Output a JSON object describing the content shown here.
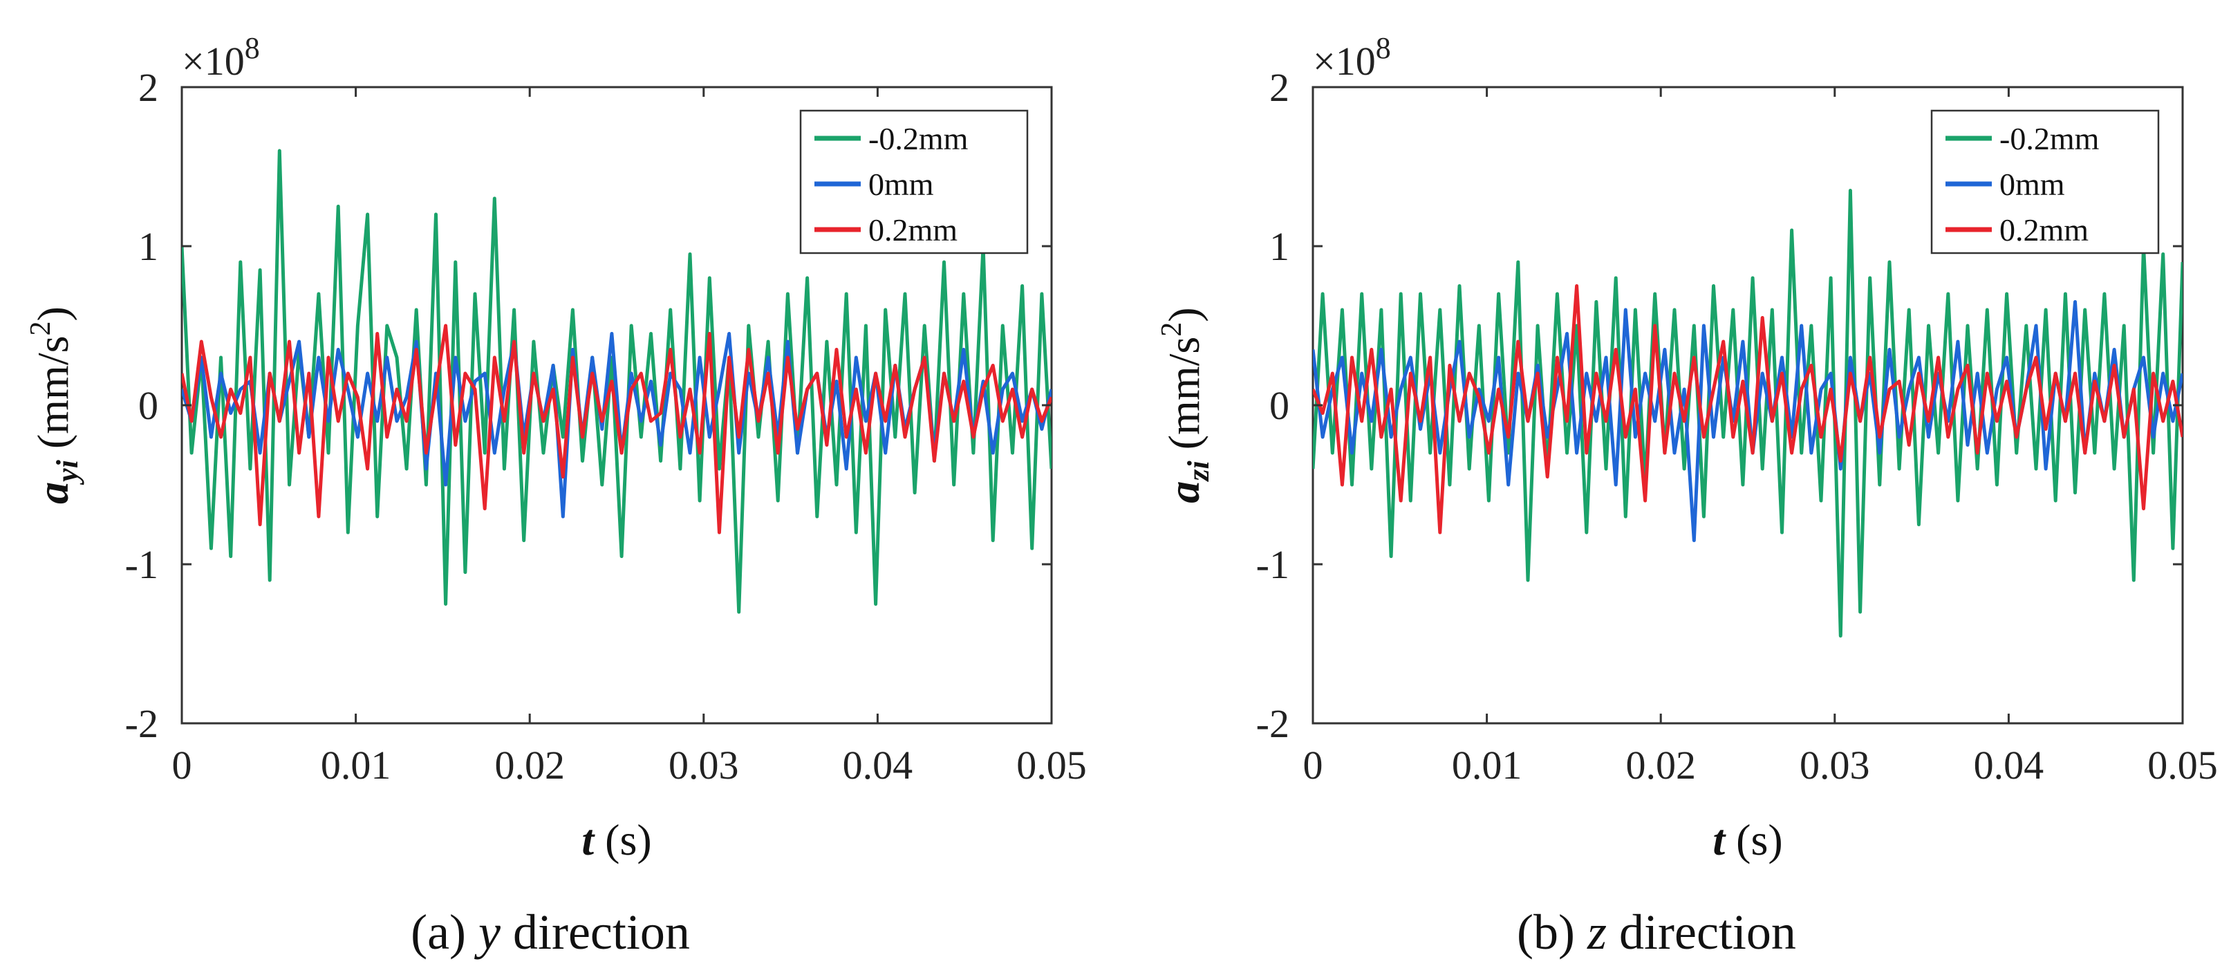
{
  "colors": {
    "series_minus_0_2": "#1aa36a",
    "series_0": "#1f66d6",
    "series_plus_0_2": "#e8242c"
  },
  "chart_data": [
    {
      "type": "line",
      "caption_letter": "(a)",
      "caption_var": "y",
      "caption_rest": " direction",
      "ylabel_main": "a",
      "ylabel_sub": "yi",
      "ylabel_unit_prefix": " (mm/s",
      "ylabel_unit_exp": "2",
      "ylabel_unit_suffix": ")",
      "xlabel_var": "t",
      "xlabel_unit": " (s)",
      "y_scale_base": "×10",
      "y_scale_exp": "8",
      "xlim": [
        0,
        0.05
      ],
      "ylim": [
        -2,
        2
      ],
      "x_ticks": [
        0,
        0.01,
        0.02,
        0.03,
        0.04,
        0.05
      ],
      "x_tick_labels": [
        "0",
        "0.01",
        "0.02",
        "0.03",
        "0.04",
        "0.05"
      ],
      "y_ticks": [
        -2,
        -1,
        0,
        1,
        2
      ],
      "y_tick_labels": [
        "-2",
        "-1",
        "0",
        "1",
        "2"
      ],
      "legend": [
        "-0.2mm",
        "0mm",
        "0.2mm"
      ],
      "legend_position": "top-right",
      "series": [
        {
          "name": "-0.2mm",
          "x_start": 0,
          "x_end": 0.05,
          "values": [
            1.0,
            -0.3,
            0.3,
            -0.9,
            0.3,
            -0.95,
            0.9,
            -0.4,
            0.85,
            -1.1,
            1.6,
            -0.5,
            0.35,
            -0.2,
            0.7,
            -0.3,
            1.25,
            -0.8,
            0.5,
            1.2,
            -0.7,
            0.5,
            0.3,
            -0.4,
            0.6,
            -0.5,
            1.2,
            -1.25,
            0.9,
            -1.05,
            0.7,
            -0.3,
            1.3,
            -0.4,
            0.6,
            -0.85,
            0.4,
            -0.3,
            0.25,
            -0.2,
            0.6,
            -0.35,
            0.3,
            -0.5,
            0.3,
            -0.95,
            0.5,
            -0.2,
            0.45,
            -0.35,
            0.6,
            -0.4,
            0.95,
            -0.6,
            0.8,
            -0.4,
            0.3,
            -1.3,
            0.5,
            -0.2,
            0.4,
            -0.6,
            0.7,
            -0.3,
            0.8,
            -0.7,
            0.4,
            -0.5,
            0.7,
            -0.8,
            0.5,
            -1.25,
            0.6,
            -0.2,
            0.7,
            -0.55,
            0.5,
            -0.35,
            0.9,
            -0.5,
            0.7,
            -0.3,
            1.0,
            -0.85,
            0.5,
            -0.3,
            0.75,
            -0.9,
            0.7,
            -0.4
          ]
        },
        {
          "name": "0mm",
          "x_start": 0,
          "x_end": 0.05,
          "values": [
            0.1,
            -0.1,
            0.3,
            -0.2,
            0.2,
            -0.05,
            0.1,
            0.15,
            -0.3,
            0.2,
            -0.1,
            0.15,
            0.4,
            -0.2,
            0.3,
            -0.1,
            0.35,
            0.1,
            -0.2,
            0.2,
            -0.1,
            0.3,
            -0.1,
            0.05,
            0.4,
            -0.4,
            0.2,
            -0.5,
            0.3,
            -0.1,
            0.15,
            0.2,
            -0.3,
            0.1,
            0.4,
            -0.2,
            0.2,
            -0.1,
            0.25,
            -0.7,
            0.35,
            -0.2,
            0.3,
            -0.15,
            0.45,
            -0.3,
            0.2,
            -0.1,
            0.15,
            -0.25,
            0.2,
            0.1,
            -0.3,
            0.3,
            -0.2,
            0.1,
            0.45,
            -0.3,
            0.2,
            -0.1,
            0.3,
            -0.2,
            0.4,
            -0.3,
            0.1,
            0.2,
            -0.2,
            0.15,
            -0.4,
            0.3,
            -0.1,
            0.2,
            -0.3,
            0.25,
            -0.15,
            0.1,
            0.3,
            -0.3,
            0.2,
            -0.1,
            0.35,
            -0.2,
            0.15,
            -0.3,
            0.1,
            0.2,
            -0.1,
            0.1,
            -0.15,
            0.1
          ]
        },
        {
          "name": "0.2mm",
          "x_start": 0,
          "x_end": 0.05,
          "values": [
            0.2,
            -0.1,
            0.4,
            0.05,
            -0.2,
            0.1,
            -0.05,
            0.3,
            -0.75,
            0.2,
            -0.1,
            0.4,
            -0.3,
            0.2,
            -0.7,
            0.3,
            -0.1,
            0.2,
            0.05,
            -0.4,
            0.45,
            -0.2,
            0.1,
            -0.1,
            0.35,
            -0.3,
            0.1,
            0.5,
            -0.25,
            0.2,
            0.1,
            -0.65,
            0.3,
            -0.1,
            0.4,
            -0.3,
            0.2,
            -0.1,
            0.1,
            -0.45,
            0.3,
            -0.2,
            0.2,
            -0.1,
            0.15,
            -0.3,
            0.1,
            0.2,
            -0.1,
            -0.05,
            0.35,
            -0.2,
            0.1,
            -0.3,
            0.45,
            -0.8,
            0.3,
            -0.2,
            0.35,
            -0.1,
            0.2,
            -0.3,
            0.3,
            -0.15,
            0.1,
            0.2,
            -0.25,
            0.35,
            -0.2,
            0.1,
            -0.3,
            0.2,
            -0.1,
            0.25,
            -0.2,
            0.1,
            0.3,
            -0.35,
            0.2,
            -0.1,
            0.15,
            -0.2,
            0.1,
            0.25,
            -0.1,
            0.1,
            -0.2,
            0.1,
            -0.1,
            0.05
          ]
        }
      ]
    },
    {
      "type": "line",
      "caption_letter": "(b)",
      "caption_var": "z",
      "caption_rest": " direction",
      "ylabel_main": "a",
      "ylabel_sub": "zi",
      "ylabel_unit_prefix": " (mm/s",
      "ylabel_unit_exp": "2",
      "ylabel_unit_suffix": ")",
      "xlabel_var": "t",
      "xlabel_unit": " (s)",
      "y_scale_base": "×10",
      "y_scale_exp": "8",
      "xlim": [
        0,
        0.05
      ],
      "ylim": [
        -2,
        2
      ],
      "x_ticks": [
        0,
        0.01,
        0.02,
        0.03,
        0.04,
        0.05
      ],
      "x_tick_labels": [
        "0",
        "0.01",
        "0.02",
        "0.03",
        "0.04",
        "0.05"
      ],
      "y_ticks": [
        -2,
        -1,
        0,
        1,
        2
      ],
      "y_tick_labels": [
        "-2",
        "-1",
        "0",
        "1",
        "2"
      ],
      "legend": [
        "-0.2mm",
        "0mm",
        "0.2mm"
      ],
      "legend_position": "top-right",
      "series": [
        {
          "name": "-0.2mm",
          "x_start": 0,
          "x_end": 0.05,
          "values": [
            -0.4,
            0.7,
            -0.3,
            0.6,
            -0.5,
            0.7,
            -0.4,
            0.6,
            -0.95,
            0.7,
            -0.6,
            0.7,
            -0.3,
            0.6,
            -0.5,
            0.75,
            -0.4,
            0.5,
            -0.6,
            0.7,
            -0.3,
            0.9,
            -1.1,
            0.5,
            -0.4,
            0.7,
            -0.3,
            0.5,
            -0.8,
            0.65,
            -0.4,
            0.8,
            -0.7,
            0.6,
            -0.5,
            0.7,
            -0.3,
            0.6,
            -0.4,
            0.5,
            -0.7,
            0.75,
            -0.2,
            0.6,
            -0.5,
            0.8,
            -0.4,
            0.6,
            -0.8,
            1.1,
            -0.3,
            0.5,
            -0.6,
            0.8,
            -1.45,
            1.35,
            -1.3,
            0.8,
            -0.5,
            0.9,
            -0.4,
            0.6,
            -0.75,
            0.5,
            -0.3,
            0.7,
            -0.6,
            0.5,
            -0.4,
            0.6,
            -0.5,
            0.7,
            -0.3,
            0.5,
            -0.4,
            0.6,
            -0.6,
            0.7,
            -0.55,
            0.6,
            -0.3,
            0.7,
            -0.4,
            0.5,
            -1.1,
            1.0,
            -0.3,
            0.95,
            -0.9,
            0.9
          ]
        },
        {
          "name": "0mm",
          "x_start": 0,
          "x_end": 0.05,
          "values": [
            0.35,
            -0.2,
            0.1,
            0.3,
            -0.3,
            0.2,
            -0.1,
            0.35,
            -0.2,
            0.1,
            0.3,
            -0.15,
            0.2,
            -0.3,
            0.1,
            0.4,
            -0.2,
            0.1,
            -0.1,
            0.3,
            -0.5,
            0.2,
            -0.1,
            0.25,
            -0.2,
            0.1,
            0.45,
            -0.3,
            0.2,
            -0.1,
            0.3,
            -0.5,
            0.6,
            -0.2,
            0.2,
            -0.1,
            0.35,
            -0.3,
            0.1,
            -0.85,
            0.5,
            -0.2,
            0.3,
            -0.1,
            0.4,
            -0.3,
            0.2,
            -0.1,
            0.3,
            -0.2,
            0.5,
            -0.3,
            0.1,
            0.2,
            -0.4,
            0.3,
            -0.1,
            0.2,
            -0.3,
            0.35,
            -0.2,
            0.1,
            0.3,
            -0.2,
            0.2,
            -0.1,
            0.4,
            -0.25,
            0.2,
            -0.3,
            0.1,
            0.3,
            -0.2,
            0.1,
            0.5,
            -0.4,
            0.2,
            -0.1,
            0.65,
            -0.3,
            0.2,
            -0.1,
            0.35,
            -0.2,
            0.1,
            0.3,
            -0.2,
            0.2,
            -0.1,
            0.2
          ]
        },
        {
          "name": "0.2mm",
          "x_start": 0,
          "x_end": 0.05,
          "values": [
            0.1,
            -0.05,
            0.2,
            -0.5,
            0.3,
            -0.1,
            0.35,
            -0.2,
            0.1,
            -0.6,
            0.2,
            -0.1,
            0.3,
            -0.8,
            0.25,
            -0.1,
            0.2,
            0.05,
            -0.3,
            0.1,
            -0.2,
            0.4,
            -0.1,
            0.2,
            -0.45,
            0.3,
            -0.1,
            0.75,
            -0.3,
            0.2,
            -0.1,
            0.35,
            -0.2,
            0.1,
            -0.6,
            0.5,
            -0.3,
            0.2,
            -0.1,
            0.3,
            -0.2,
            0.1,
            0.4,
            -0.2,
            0.15,
            -0.3,
            0.55,
            -0.1,
            0.2,
            -0.3,
            0.1,
            0.25,
            -0.2,
            0.1,
            -0.35,
            0.2,
            -0.1,
            0.3,
            -0.2,
            0.1,
            0.15,
            -0.25,
            0.2,
            -0.1,
            0.3,
            -0.2,
            0.1,
            0.25,
            -0.3,
            0.2,
            -0.1,
            0.15,
            -0.2,
            0.1,
            0.3,
            -0.15,
            0.2,
            -0.1,
            0.2,
            -0.3,
            0.15,
            -0.1,
            0.25,
            -0.2,
            0.1,
            -0.65,
            0.2,
            -0.1,
            0.15,
            -0.2
          ]
        }
      ]
    }
  ]
}
